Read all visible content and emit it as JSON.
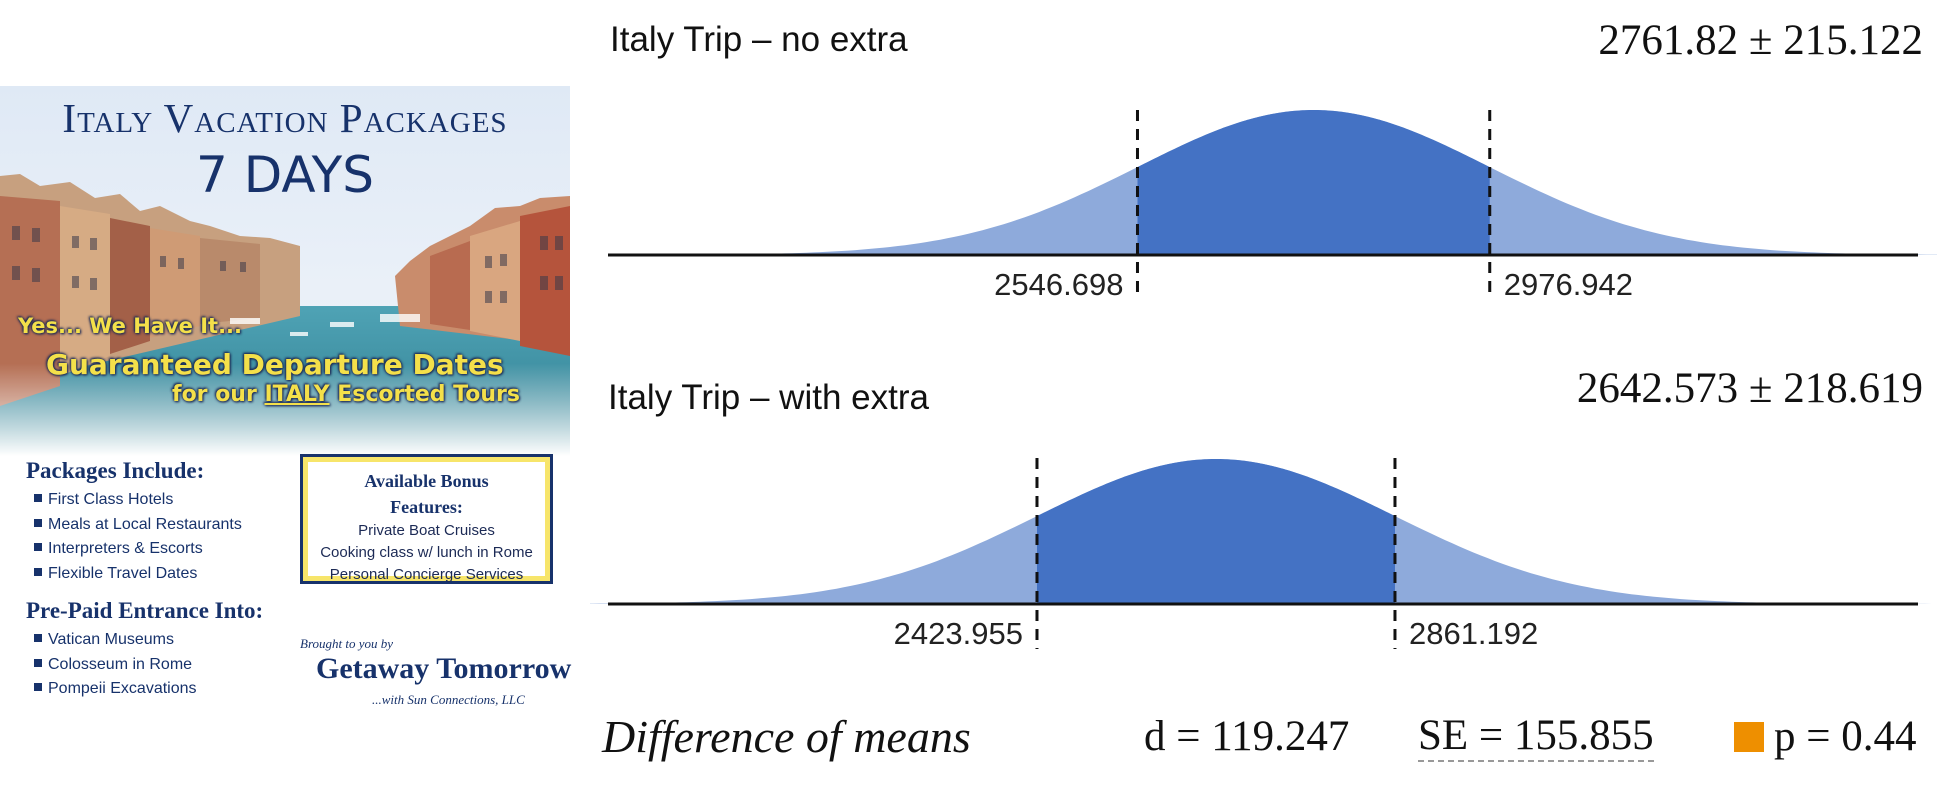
{
  "poster": {
    "title": "Italy Vacation Packages",
    "days": "7 DAYS",
    "tagline_1": "Yes... We Have It...",
    "tagline_2": "Guaranteed Departure Dates",
    "tagline_3_pre": "for our ",
    "tagline_3_underlined": "ITALY",
    "tagline_3_post": " Escorted Tours",
    "packages_heading": "Packages Include:",
    "packages": [
      "First Class Hotels",
      "Meals at Local Restaurants",
      "Interpreters & Escorts",
      "Flexible Travel Dates"
    ],
    "entrance_heading": "Pre-Paid Entrance Into:",
    "entrance": [
      "Vatican Museums",
      "Colosseum in Rome",
      "Pompeii Excavations"
    ],
    "bonus_heading": "Available Bonus Features:",
    "bonus": [
      "Private Boat Cruises",
      "Cooking class w/ lunch in Rome",
      "Personal Concierge Services"
    ],
    "brought_by": "Brought to you by",
    "brand": "Getaway Tomorrow",
    "brand_sub": "...with Sun Connections, LLC"
  },
  "chart_data": {
    "type": "area",
    "series": [
      {
        "name": "Italy Trip – no extra",
        "mean": 2761.82,
        "se": 215.122,
        "stat_label": "2761.82 ± 215.122",
        "ci_low": 2546.698,
        "ci_high": 2976.942,
        "ci_low_label": "2546.698",
        "ci_high_label": "2976.942"
      },
      {
        "name": "Italy Trip – with extra",
        "mean": 2642.573,
        "se": 218.619,
        "stat_label": "2642.573 ± 218.619",
        "ci_low": 2423.955,
        "ci_high": 2861.192,
        "ci_low_label": "2423.955",
        "ci_high_label": "2861.192"
      }
    ],
    "x_range": [
      1900,
      3500
    ],
    "summary": {
      "label": "Difference of means",
      "d": 119.247,
      "d_label": "d = 119.247",
      "se": 155.855,
      "se_label": "SE = 155.855",
      "p": 0.44,
      "p_label": "p = 0.44"
    },
    "colors": {
      "fill": "#4472c4",
      "tail": "#8eaadb",
      "p_swatch": "#ee8f00"
    }
  }
}
